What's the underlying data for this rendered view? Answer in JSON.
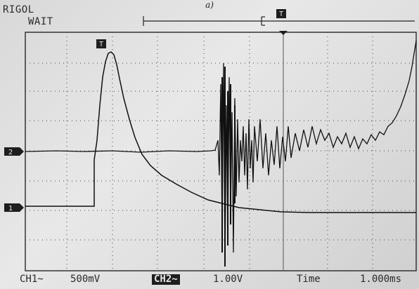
{
  "caption": "a)",
  "header": {
    "brand": "RIGOL",
    "status": "WAIT"
  },
  "markers": {
    "trigger_icon": "trigger-T-icon",
    "ch1_label": "1",
    "ch2_label": "2"
  },
  "footer": {
    "ch1": "CH1~",
    "ch1_scale": "500mV",
    "ch2": "CH2~",
    "ch2_scale": "1.00V",
    "time_label": "Time",
    "time_scale": "1.000ms"
  },
  "colors": {
    "trace": "#111111",
    "grid": "#3a3a3a",
    "background": "#e0e0e0"
  }
}
